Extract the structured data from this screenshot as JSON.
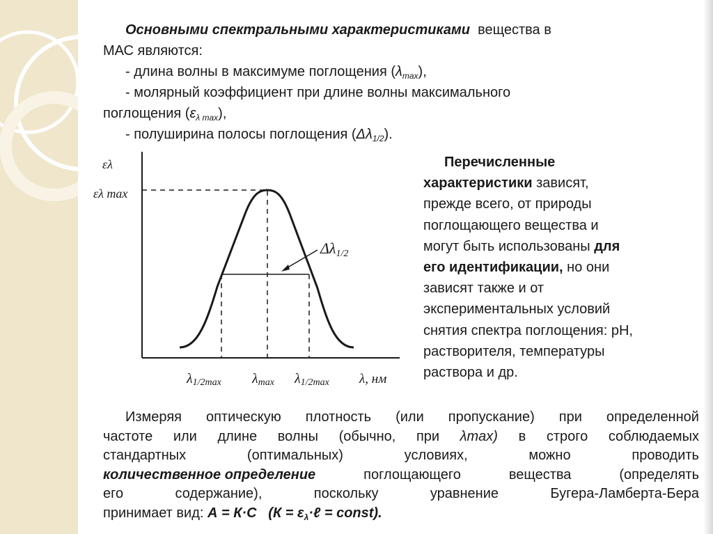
{
  "heading": {
    "lead": "Основными спектральными характеристиками",
    "tail": "вещества в",
    "line2": "МАС являются:"
  },
  "bullets": [
    {
      "text": "- длина волны в максимуме поглощения (",
      "sym": "λ",
      "sub": "max",
      "end": "),"
    },
    {
      "text": "- молярный коэффициент при длине волны максимального"
    },
    {
      "text": "поглощения (",
      "sym": "ε",
      "sub": "λ max",
      "end": "),"
    },
    {
      "text": "- полуширина полосы поглощения (",
      "sym": "Δλ",
      "sub": "1/2",
      "end": ")."
    }
  ],
  "graph": {
    "y_axis_label": "ελ",
    "y_max_label": "ελ max",
    "half_width_label": "Δλ",
    "half_width_sub": "1/2",
    "x_tick_left": "λ",
    "x_tick_left_sub": "1/2max",
    "x_tick_mid": "λ",
    "x_tick_mid_sub": "max",
    "x_tick_right": "λ",
    "x_tick_right_sub": "1/2max",
    "x_axis_label": "λ, нм"
  },
  "right_paragraph": {
    "l1": "Перечисленные",
    "l2_bold": "характеристики",
    "l2_rest": " зависят,",
    "l3": "прежде всего, от природы",
    "l4": "поглощающего вещества и",
    "l5_rest": "могут быть использованы ",
    "l5_bold": "для",
    "l6_bold": "его идентификации,",
    "l6_rest": " но они",
    "l7": "зависят также и от",
    "l8": "экспериментальных условий",
    "l9": "снятия спектра поглощения: pH,",
    "l10": "растворителя, температуры",
    "l11": "раствора и др."
  },
  "bottom_paragraph": {
    "line1": [
      "Измеряя",
      "оптическую",
      "плотность",
      "(или",
      "пропускание)",
      "при",
      "определенной"
    ],
    "line2": [
      "частоте",
      "или",
      "длине",
      "волны",
      "(обычно,",
      "при",
      "λmax)",
      "в",
      "строго",
      "соблюдаемых"
    ],
    "line3": [
      "стандартных",
      "(оптимальных)",
      "условиях,",
      "можно",
      "проводить"
    ],
    "line4_bi": "количественное определение",
    "line4_rest": [
      "поглощающего",
      "вещества",
      "(определять"
    ],
    "line5": [
      "его",
      "содержание),",
      "поскольку",
      "уравнение",
      "Бугера-Ламберта-Бера"
    ],
    "line6_rest": "принимает вид: ",
    "line6_formula": "А = К·С",
    "line6_const": "(К = ε",
    "line6_const_sub": "λ",
    "line6_const_end": "·ℓ = const)."
  },
  "colors": {
    "band": "#efe6cc",
    "circles": "#ffffff",
    "text": "#1a1a1a"
  }
}
